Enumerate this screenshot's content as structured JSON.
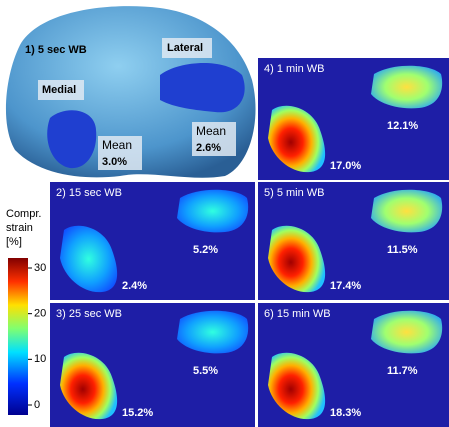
{
  "figure": {
    "top_panel": {
      "title": "1) 5 sec WB",
      "medial_label": "Medial",
      "lateral_label": "Lateral",
      "medial_mean": {
        "label": "Mean",
        "value": "3.0%"
      },
      "lateral_mean": {
        "label": "Mean",
        "value": "2.6%"
      }
    },
    "panels": [
      {
        "label": "2) 15 sec WB",
        "medial": "2.4%",
        "lateral": "5.2%"
      },
      {
        "label": "3) 25 sec WB",
        "medial": "15.2%",
        "lateral": "5.5%"
      },
      {
        "label": "4) 1 min WB",
        "medial": "17.0%",
        "lateral": "12.1%"
      },
      {
        "label": "5) 5 min WB",
        "medial": "17.4%",
        "lateral": "11.5%"
      },
      {
        "label": "6) 15 min WB",
        "medial": "18.3%",
        "lateral": "11.7%"
      }
    ],
    "colorbar": {
      "title_lines": [
        "Compr.",
        "strain",
        "[%]"
      ],
      "ticks": [
        0,
        10,
        20,
        30
      ]
    }
  }
}
